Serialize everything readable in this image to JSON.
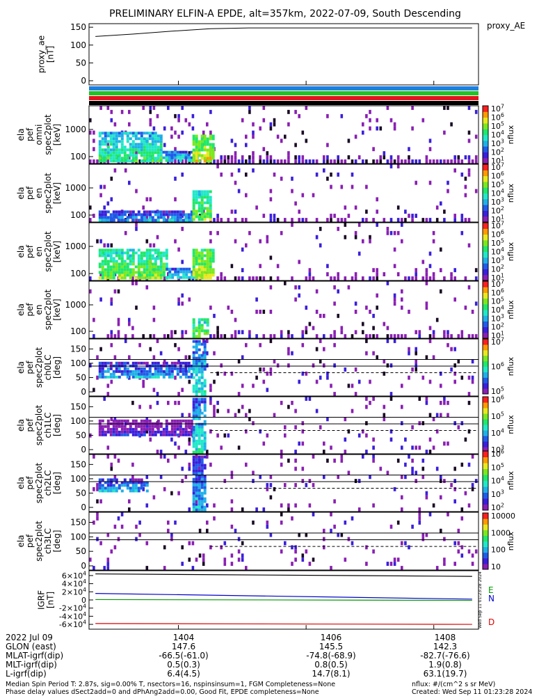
{
  "title": "PRELIMINARY ELFIN-A EPDE, alt=357km, 2022-07-09, South Descending",
  "colors": {
    "frame": "#000000",
    "bar_blue": "#1f7fe0",
    "bar_green": "#22c322",
    "bar_red": "#e0141e",
    "bar_black": "#000000",
    "bz_green": "#009900",
    "bz_blue": "#0000cc",
    "bz_red": "#dd0000"
  },
  "colormap": [
    "#ffffff",
    "#8a1fb3",
    "#3a1fdc",
    "#1f5ce8",
    "#1fb0e8",
    "#1fe8c8",
    "#1fe86a",
    "#7ae81f",
    "#e8e81f",
    "#ff9a00",
    "#ff1f1f"
  ],
  "chart_data": [
    {
      "type": "line",
      "ylabel": "proxy_ae [nT]",
      "legend": "proxy_AE",
      "y_ticks": [
        "0",
        "50",
        "100",
        "150"
      ],
      "ylim": [
        0,
        160
      ],
      "x": [
        1402.7,
        1403.3,
        1403.9,
        1404.5,
        1405.1,
        1405.7,
        1406.3,
        1406.9,
        1407.5,
        1408.1,
        1408.6
      ],
      "values": [
        124,
        131,
        139,
        146,
        148,
        148,
        148,
        148,
        148,
        148,
        148
      ]
    },
    {
      "type": "heatmap",
      "id": "p1",
      "ylabel": "ela pef omni spec2plot [keV]",
      "y_ticks": [
        "100",
        "1000"
      ],
      "cbar_label": "nflux",
      "cbar_ticks": [
        "10^1",
        "10^2",
        "10^3",
        "10^4",
        "10^5",
        "10^6",
        "10^7"
      ],
      "zlim": [
        10,
        10000000
      ],
      "clouds": [
        {
          "x0": 1402.75,
          "x1": 1403.75,
          "y0": 0.05,
          "y1": 0.55,
          "level": 5
        },
        {
          "x0": 1403.75,
          "x1": 1404.3,
          "y0": 0.05,
          "y1": 0.22,
          "level": 4
        },
        {
          "x0": 1404.22,
          "x1": 1404.55,
          "y0": 0.05,
          "y1": 0.5,
          "level": 7
        }
      ]
    },
    {
      "type": "heatmap",
      "id": "p2",
      "ylabel": "ela pef en spec2plot [keV]",
      "y_ticks": [
        "100",
        "1000"
      ],
      "cbar_label": "nflux",
      "cbar_ticks": [
        "10^1",
        "10^2",
        "10^3",
        "10^4",
        "10^5",
        "10^6",
        "10^7"
      ],
      "zlim": [
        10,
        10000000
      ],
      "clouds": [
        {
          "x0": 1402.75,
          "x1": 1404.2,
          "y0": 0.05,
          "y1": 0.2,
          "level": 3
        },
        {
          "x0": 1404.22,
          "x1": 1404.5,
          "y0": 0.05,
          "y1": 0.55,
          "level": 6
        }
      ]
    },
    {
      "type": "heatmap",
      "id": "p3",
      "ylabel": "ela pef en spec2plot [keV]",
      "y_ticks": [
        "100",
        "1000"
      ],
      "cbar_label": "nflux",
      "cbar_ticks": [
        "10^1",
        "10^2",
        "10^3",
        "10^4",
        "10^5",
        "10^6",
        "10^7"
      ],
      "zlim": [
        10,
        10000000
      ],
      "clouds": [
        {
          "x0": 1402.75,
          "x1": 1403.8,
          "y0": 0.05,
          "y1": 0.55,
          "level": 6
        },
        {
          "x0": 1403.8,
          "x1": 1404.3,
          "y0": 0.05,
          "y1": 0.22,
          "level": 4
        },
        {
          "x0": 1404.22,
          "x1": 1404.55,
          "y0": 0.05,
          "y1": 0.55,
          "level": 7
        }
      ]
    },
    {
      "type": "heatmap",
      "id": "p4",
      "ylabel": "ela pef en spec2plot [keV]",
      "y_ticks": [
        "100",
        "1000"
      ],
      "cbar_label": "nflux",
      "cbar_ticks": [
        "10^1",
        "10^2",
        "10^3",
        "10^4",
        "10^5",
        "10^6",
        "10^7"
      ],
      "zlim": [
        10,
        10000000
      ],
      "clouds": [
        {
          "x0": 1404.22,
          "x1": 1404.45,
          "y0": 0.05,
          "y1": 0.35,
          "level": 6
        }
      ]
    },
    {
      "type": "heatmap",
      "id": "p5",
      "ylabel": "ela pef spec2plot ch0LC [deg]",
      "y_ticks": [
        "0",
        "50",
        "100",
        "150"
      ],
      "ylim": [
        0,
        180
      ],
      "cbar_label": "nflux",
      "cbar_ticks": [
        "10^5",
        "10^6",
        "10^7"
      ],
      "lines": [
        {
          "y": 113,
          "dash": false
        },
        {
          "y": 90,
          "dash": false
        },
        {
          "y": 67,
          "dash": true
        }
      ],
      "clouds": [
        {
          "x0": 1402.75,
          "x1": 1404.2,
          "y0": 0.34,
          "y1": 0.6,
          "level": 3
        },
        {
          "x0": 1404.22,
          "x1": 1404.42,
          "y0": 0.05,
          "y1": 0.98,
          "level": 4
        }
      ]
    },
    {
      "type": "heatmap",
      "id": "p6",
      "ylabel": "ela pef spec2plot ch1LC [deg]",
      "y_ticks": [
        "0",
        "50",
        "100",
        "150"
      ],
      "ylim": [
        0,
        180
      ],
      "cbar_label": "nflux",
      "cbar_ticks": [
        "10^3",
        "10^4",
        "10^5",
        "10^6"
      ],
      "lines": [
        {
          "y": 113,
          "dash": false
        },
        {
          "y": 90,
          "dash": false
        },
        {
          "y": 67,
          "dash": true
        }
      ],
      "clouds": [
        {
          "x0": 1402.75,
          "x1": 1404.2,
          "y0": 0.34,
          "y1": 0.6,
          "level": 1
        },
        {
          "x0": 1404.22,
          "x1": 1404.42,
          "y0": 0.05,
          "y1": 0.98,
          "level": 4
        }
      ]
    },
    {
      "type": "heatmap",
      "id": "p7",
      "ylabel": "ela pef spec2plot ch2LC [deg]",
      "y_ticks": [
        "0",
        "50",
        "100",
        "150"
      ],
      "ylim": [
        0,
        180
      ],
      "cbar_label": "nflux",
      "cbar_ticks": [
        "10^2",
        "10^3",
        "10^4",
        "10^5",
        "10^6"
      ],
      "lines": [
        {
          "y": 113,
          "dash": false
        },
        {
          "y": 90,
          "dash": false
        },
        {
          "y": 67,
          "dash": true
        }
      ],
      "clouds": [
        {
          "x0": 1402.75,
          "x1": 1403.5,
          "y0": 0.38,
          "y1": 0.58,
          "level": 3
        },
        {
          "x0": 1404.22,
          "x1": 1404.42,
          "y0": 0.05,
          "y1": 0.98,
          "level": 3
        }
      ]
    },
    {
      "type": "heatmap",
      "id": "p8",
      "ylabel": "ela pef spec2plot ch3LC [deg]",
      "y_ticks": [
        "0",
        "50",
        "100",
        "150"
      ],
      "ylim": [
        0,
        180
      ],
      "cbar_label": "nflux",
      "cbar_ticks": [
        "10",
        "100",
        "1000",
        "10000"
      ],
      "lines": [
        {
          "y": 113,
          "dash": false
        },
        {
          "y": 90,
          "dash": false
        },
        {
          "y": 67,
          "dash": true
        }
      ],
      "clouds": []
    },
    {
      "type": "line",
      "id": "igrf",
      "ylabel": "IGRF [nT]",
      "y_ticks": [
        "-6×10^4",
        "-4×10^4",
        "-2×10^4",
        "0",
        "2×10^4",
        "4×10^4",
        "6×10^4"
      ],
      "ylim": [
        -65000,
        65000
      ],
      "legend": [
        "E",
        "N",
        "D"
      ],
      "x": [
        1402.7,
        1408.6
      ],
      "series": [
        {
          "name": "E",
          "values": [
            1000,
            -1000
          ]
        },
        {
          "name": "N",
          "values": [
            16000,
            2000
          ]
        },
        {
          "name": "D",
          "values": [
            -58000,
            -60000
          ]
        },
        {
          "name": "total",
          "values": [
            64000,
            58000
          ]
        }
      ]
    }
  ],
  "x_axis": {
    "xlim": [
      1402.6,
      1408.7
    ],
    "ticks": [
      1404,
      1406,
      1408
    ],
    "labels": [
      "1404",
      "1406",
      "1408"
    ]
  },
  "ephemeris": {
    "rows": [
      {
        "label": "2022 Jul 09",
        "v": [
          "1404",
          "1406",
          "1408"
        ]
      },
      {
        "label": "GLON (east)",
        "v": [
          "147.6",
          "145.5",
          "142.3"
        ]
      },
      {
        "label": "MLAT-igrf(dip)",
        "v": [
          "-66.5(-61.0)",
          "-74.8(-68.9)",
          "-82.7(-76.6)"
        ]
      },
      {
        "label": "MLT-igrf(dip)",
        "v": [
          "0.5(0.3)",
          "0.8(0.5)",
          "1.9(0.8)"
        ]
      },
      {
        "label": "L-igrf(dip)",
        "v": [
          "6.4(4.5)",
          "14.7(8.1)",
          "63.1(19.7)"
        ]
      }
    ]
  },
  "footer": {
    "line1": "Median Spin Period T: 2.87s, sig=0.00% T, nsectors=16, nspinsinsum=1, FGM Completeness=None",
    "line2": "Phase delay values dSect2add=0 and dPhAng2add=0.00, Good Fit, EPDE completeness=None",
    "units": "nflux: #/(cm^2 s sr MeV)",
    "created": "Created: Wed Sep 11 01:23:28 2024",
    "side_stamp": "Wed Sep 11 01:23:28 2024"
  }
}
